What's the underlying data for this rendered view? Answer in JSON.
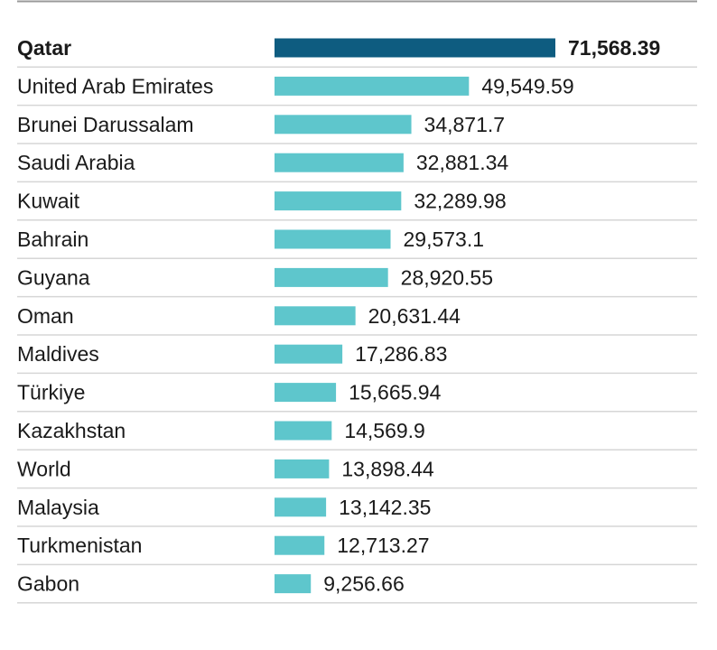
{
  "chart_data": {
    "type": "bar",
    "orientation": "horizontal",
    "title": "",
    "xlabel": "",
    "ylabel": "",
    "highlight_category": "Qatar",
    "colors": {
      "highlight": "#0e5c80",
      "bar": "#5ec6cc",
      "rule": "#d6d6d6",
      "top_rule": "#9a9a9a"
    },
    "categories": [
      "Qatar",
      "United Arab Emirates",
      "Brunei Darussalam",
      "Saudi Arabia",
      "Kuwait",
      "Bahrain",
      "Guyana",
      "Oman",
      "Maldives",
      "Türkiye",
      "Kazakhstan",
      "World",
      "Malaysia",
      "Turkmenistan",
      "Gabon"
    ],
    "values": [
      71568.39,
      49549.59,
      34871.7,
      32881.34,
      32289.98,
      29573.1,
      28920.55,
      20631.44,
      17286.83,
      15665.94,
      14569.9,
      13898.44,
      13142.35,
      12713.27,
      9256.66
    ],
    "value_labels": [
      "71,568.39",
      "49,549.59",
      "34,871.7",
      "32,881.34",
      "32,289.98",
      "29,573.1",
      "28,920.55",
      "20,631.44",
      "17,286.83",
      "15,665.94",
      "14,569.9",
      "13,898.44",
      "13,142.35",
      "12,713.27",
      "9,256.66"
    ],
    "xlim": [
      0,
      71568.39
    ],
    "grid": false,
    "legend": "none"
  }
}
